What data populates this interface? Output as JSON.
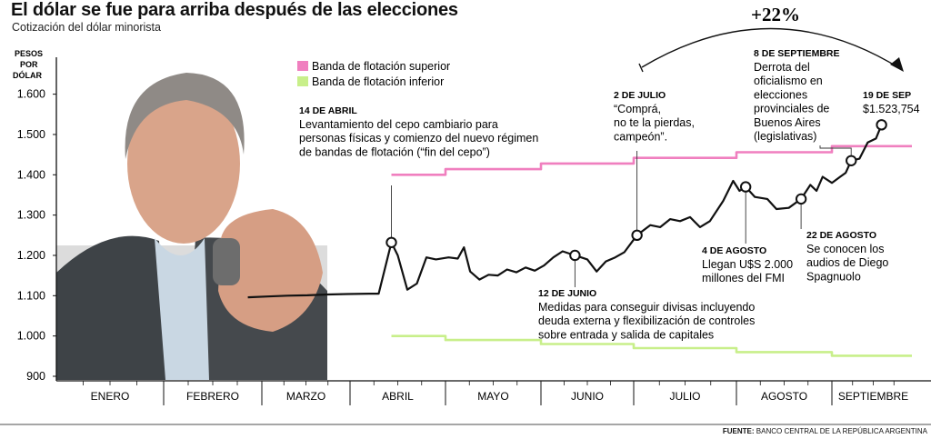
{
  "title": "El dólar se fue para arriba después de las elecciones",
  "subtitle": "Cotización del dólar minorista",
  "source_label": "FUENTE:",
  "source_text": "BANCO CENTRAL DE LA REPÚBLICA ARGENTINA",
  "colors": {
    "dollar_line": "#111111",
    "upper_band": "#f07fbf",
    "lower_band": "#c8ef8a"
  },
  "chart_data": {
    "type": "line",
    "ylabel": [
      "PESOS",
      "POR",
      "DÓLAR"
    ],
    "ylim": [
      900,
      1700
    ],
    "yticks": [
      900,
      1000,
      1100,
      1200,
      1300,
      1400,
      1500,
      1600
    ],
    "ytick_labels": [
      "900",
      "1.000",
      "1.100",
      "1.200",
      "1.300",
      "1.400",
      "1.500",
      "1.600"
    ],
    "months": [
      "ENERO",
      "FEBRERO",
      "MARZO",
      "ABRIL",
      "MAYO",
      "JUNIO",
      "JULIO",
      "AGOSTO",
      "SEPTIEMBRE"
    ],
    "legend": [
      "Banda de flotación superior",
      "Banda de flotación inferior"
    ],
    "series": [
      {
        "name": "Dólar minorista",
        "points": [
          [
            "2025-02-25",
            1096
          ],
          [
            "2025-03-03",
            1098
          ],
          [
            "2025-03-10",
            1100
          ],
          [
            "2025-03-17",
            1101
          ],
          [
            "2025-03-24",
            1103
          ],
          [
            "2025-03-31",
            1104
          ],
          [
            "2025-04-07",
            1105
          ],
          [
            "2025-04-10",
            1105
          ],
          [
            "2025-04-14",
            1232
          ],
          [
            "2025-04-16",
            1200
          ],
          [
            "2025-04-19",
            1115
          ],
          [
            "2025-04-22",
            1130
          ],
          [
            "2025-04-25",
            1195
          ],
          [
            "2025-04-28",
            1190
          ],
          [
            "2025-05-02",
            1195
          ],
          [
            "2025-05-05",
            1192
          ],
          [
            "2025-05-07",
            1220
          ],
          [
            "2025-05-09",
            1160
          ],
          [
            "2025-05-12",
            1140
          ],
          [
            "2025-05-15",
            1152
          ],
          [
            "2025-05-18",
            1150
          ],
          [
            "2025-05-21",
            1165
          ],
          [
            "2025-05-24",
            1158
          ],
          [
            "2025-05-27",
            1170
          ],
          [
            "2025-05-30",
            1162
          ],
          [
            "2025-06-02",
            1175
          ],
          [
            "2025-06-05",
            1195
          ],
          [
            "2025-06-08",
            1210
          ],
          [
            "2025-06-12",
            1200
          ],
          [
            "2025-06-14",
            1195
          ],
          [
            "2025-06-16",
            1190
          ],
          [
            "2025-06-19",
            1160
          ],
          [
            "2025-06-22",
            1185
          ],
          [
            "2025-06-25",
            1195
          ],
          [
            "2025-06-28",
            1208
          ],
          [
            "2025-07-02",
            1250
          ],
          [
            "2025-07-06",
            1275
          ],
          [
            "2025-07-09",
            1270
          ],
          [
            "2025-07-12",
            1290
          ],
          [
            "2025-07-15",
            1285
          ],
          [
            "2025-07-18",
            1295
          ],
          [
            "2025-07-21",
            1270
          ],
          [
            "2025-07-24",
            1285
          ],
          [
            "2025-07-28",
            1335
          ],
          [
            "2025-07-31",
            1385
          ],
          [
            "2025-08-02",
            1360
          ],
          [
            "2025-08-04",
            1370
          ],
          [
            "2025-08-07",
            1345
          ],
          [
            "2025-08-11",
            1340
          ],
          [
            "2025-08-14",
            1315
          ],
          [
            "2025-08-18",
            1318
          ],
          [
            "2025-08-22",
            1340
          ],
          [
            "2025-08-25",
            1375
          ],
          [
            "2025-08-27",
            1360
          ],
          [
            "2025-08-29",
            1395
          ],
          [
            "2025-09-01",
            1380
          ],
          [
            "2025-09-04",
            1395
          ],
          [
            "2025-09-06",
            1405
          ],
          [
            "2025-09-08",
            1435
          ],
          [
            "2025-09-11",
            1440
          ],
          [
            "2025-09-14",
            1480
          ],
          [
            "2025-09-17",
            1490
          ],
          [
            "2025-09-19",
            1524
          ]
        ]
      },
      {
        "name": "Banda de flotación superior",
        "points": [
          [
            "2025-04-14",
            1400
          ],
          [
            "2025-05-01",
            1400
          ],
          [
            "2025-05-01",
            1414
          ],
          [
            "2025-06-01",
            1414
          ],
          [
            "2025-06-01",
            1428
          ],
          [
            "2025-07-01",
            1428
          ],
          [
            "2025-07-01",
            1442
          ],
          [
            "2025-08-01",
            1442
          ],
          [
            "2025-08-01",
            1456
          ],
          [
            "2025-09-01",
            1456
          ],
          [
            "2025-09-01",
            1471
          ],
          [
            "2025-09-30",
            1471
          ]
        ]
      },
      {
        "name": "Banda de flotación inferior",
        "points": [
          [
            "2025-04-14",
            1000
          ],
          [
            "2025-05-01",
            1000
          ],
          [
            "2025-05-01",
            990
          ],
          [
            "2025-06-01",
            990
          ],
          [
            "2025-06-01",
            980
          ],
          [
            "2025-07-01",
            980
          ],
          [
            "2025-07-01",
            970
          ],
          [
            "2025-08-01",
            970
          ],
          [
            "2025-08-01",
            960
          ],
          [
            "2025-09-01",
            960
          ],
          [
            "2025-09-01",
            951
          ],
          [
            "2025-09-30",
            951
          ]
        ]
      }
    ],
    "markers": [
      "2025-04-14",
      "2025-06-12",
      "2025-07-02",
      "2025-08-04",
      "2025-08-22",
      "2025-09-08",
      "2025-09-19"
    ],
    "change_label": "+22%",
    "annotations": [
      {
        "date": "14 DE ABRIL",
        "lines": [
          "Levantamiento del cepo cambiario para",
          "personas físicas y comienzo del nuevo régimen",
          "de bandas de flotación (“fin del cepo”)"
        ]
      },
      {
        "date": "12 DE JUNIO",
        "lines": [
          "Medidas para conseguir divisas incluyendo",
          "deuda externa y flexibilización de controles",
          "sobre entrada y salida de capitales"
        ]
      },
      {
        "date": "2 DE JULIO",
        "lines": [
          "“Comprá,",
          "no te la pierdas,",
          "campeón”."
        ]
      },
      {
        "date": "4 DE AGOSTO",
        "lines": [
          "Llegan U$S 2.000",
          "millones del FMI"
        ]
      },
      {
        "date": "22 DE AGOSTO",
        "lines": [
          "Se conocen los",
          "audios de Diego",
          "Spagnuolo"
        ]
      },
      {
        "date": "8 DE SEPTIEMBRE",
        "lines": [
          "Derrota del",
          "oficialismo en",
          "elecciones",
          "provinciales de",
          "Buenos Aires",
          "(legislativas)"
        ]
      },
      {
        "date": "19 DE SEP",
        "lines": [
          "$1.523,754"
        ]
      }
    ]
  }
}
